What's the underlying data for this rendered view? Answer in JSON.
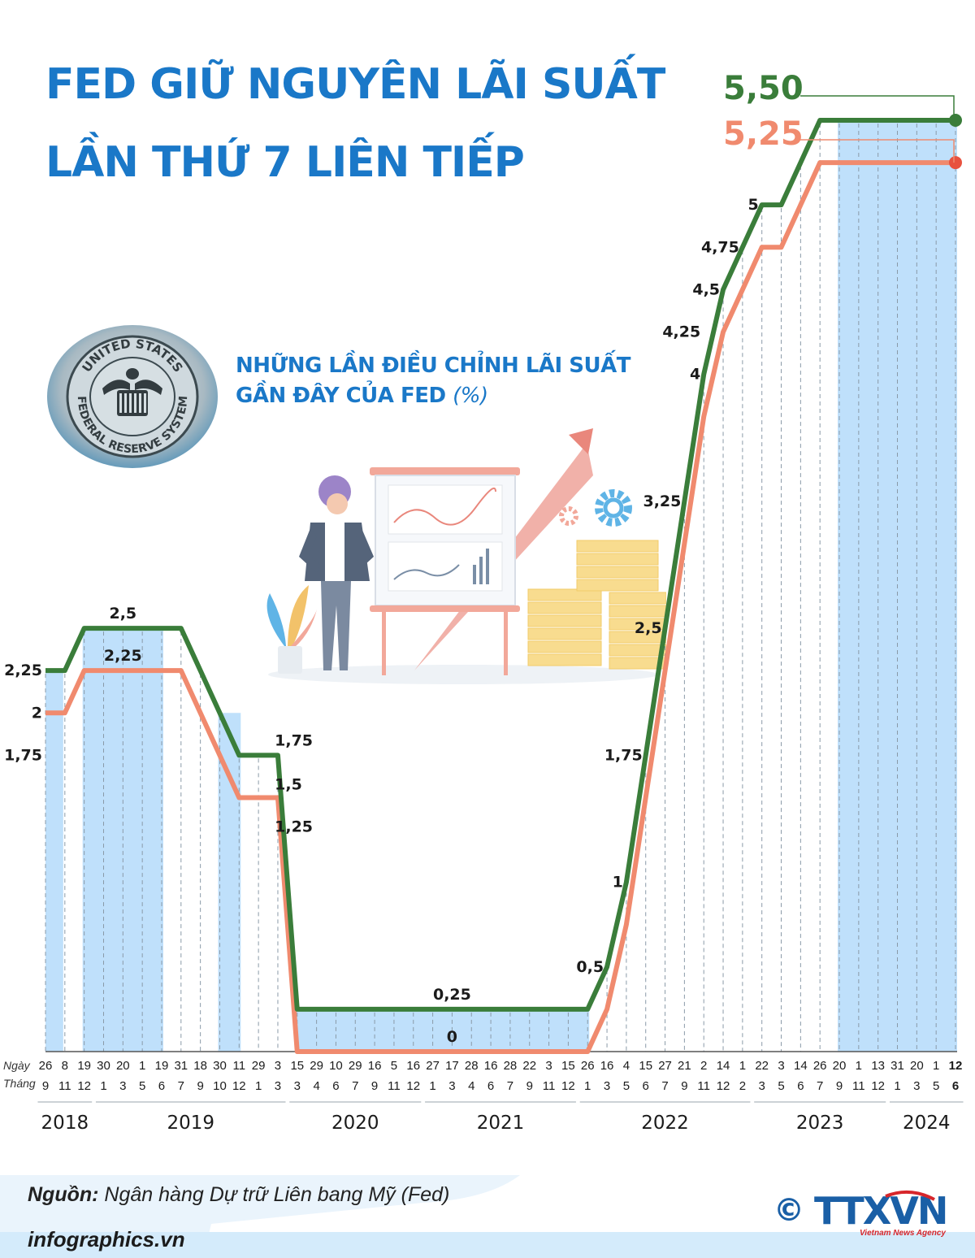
{
  "title_line1": "FED GIỮ NGUYÊN LÃI SUẤT",
  "title_line2": "LẦN THỨ 7 LIÊN TIẾP",
  "subtitle_line1": "NHỮNG LẦN ĐIỀU CHỈNH LÃI SUẤT",
  "subtitle_line2": "GẦN ĐÂY CỦA FED",
  "subtitle_unit": "(%)",
  "seal_text_top": "UNITED STATES",
  "seal_text_bottom": "FEDERAL RESERVE SYSTEM",
  "source_label": "Nguồn:",
  "source_text": "Ngân hàng Dự trữ Liên bang Mỹ (Fed)",
  "site": "infographics.vn",
  "copyright_symbol": "©",
  "logo_text": "TTXVN",
  "logo_sub": "Vietnam News Agency",
  "colors": {
    "upper": "#3a7d3a",
    "lower": "#f08a6e",
    "title": "#1a78c8",
    "band": "#bfe0fb"
  },
  "chart_data": {
    "type": "line",
    "x_axis_row_labels": [
      "Ngày",
      "Tháng"
    ],
    "dates": [
      [
        "26",
        "9"
      ],
      [
        "8",
        "11"
      ],
      [
        "19",
        "12"
      ],
      [
        "30",
        "1"
      ],
      [
        "20",
        "3"
      ],
      [
        "1",
        "5"
      ],
      [
        "19",
        "6"
      ],
      [
        "31",
        "7"
      ],
      [
        "18",
        "9"
      ],
      [
        "30",
        "10"
      ],
      [
        "11",
        "12"
      ],
      [
        "29",
        "1"
      ],
      [
        "3",
        "3"
      ],
      [
        "15",
        "3"
      ],
      [
        "29",
        "4"
      ],
      [
        "10",
        "6"
      ],
      [
        "29",
        "7"
      ],
      [
        "16",
        "9"
      ],
      [
        "5",
        "11"
      ],
      [
        "16",
        "12"
      ],
      [
        "27",
        "1"
      ],
      [
        "17",
        "3"
      ],
      [
        "28",
        "4"
      ],
      [
        "16",
        "6"
      ],
      [
        "28",
        "7"
      ],
      [
        "22",
        "9"
      ],
      [
        "3",
        "11"
      ],
      [
        "15",
        "12"
      ],
      [
        "26",
        "1"
      ],
      [
        "16",
        "3"
      ],
      [
        "4",
        "5"
      ],
      [
        "15",
        "6"
      ],
      [
        "27",
        "7"
      ],
      [
        "21",
        "9"
      ],
      [
        "2",
        "11"
      ],
      [
        "14",
        "12"
      ],
      [
        "1",
        "2"
      ],
      [
        "22",
        "3"
      ],
      [
        "3",
        "5"
      ],
      [
        "14",
        "6"
      ],
      [
        "26",
        "7"
      ],
      [
        "20",
        "9"
      ],
      [
        "1",
        "11"
      ],
      [
        "13",
        "12"
      ],
      [
        "31",
        "1"
      ],
      [
        "20",
        "3"
      ],
      [
        "1",
        "5"
      ],
      [
        "12",
        "6"
      ]
    ],
    "years": [
      {
        "label": "2018",
        "from": 0,
        "to": 2
      },
      {
        "label": "2019",
        "from": 3,
        "to": 12
      },
      {
        "label": "2020",
        "from": 13,
        "to": 19
      },
      {
        "label": "2021",
        "from": 20,
        "to": 27
      },
      {
        "label": "2022",
        "from": 28,
        "to": 36
      },
      {
        "label": "2023",
        "from": 37,
        "to": 43
      },
      {
        "label": "2024",
        "from": 44,
        "to": 47
      }
    ],
    "series": [
      {
        "role": "upper",
        "values": [
          2.25,
          2.25,
          2.5,
          2.5,
          2.5,
          2.5,
          2.5,
          2.5,
          2.25,
          2,
          1.75,
          1.75,
          1.75,
          0.25,
          0.25,
          0.25,
          0.25,
          0.25,
          0.25,
          0.25,
          0.25,
          0.25,
          0.25,
          0.25,
          0.25,
          0.25,
          0.25,
          0.25,
          0.25,
          0.5,
          1,
          1.75,
          2.5,
          3.25,
          4,
          4.5,
          4.75,
          5,
          5,
          5.25,
          5.5,
          5.5,
          5.5,
          5.5,
          5.5,
          5.5,
          5.5,
          5.5
        ]
      },
      {
        "role": "lower",
        "values": [
          2,
          2,
          2.25,
          2.25,
          2.25,
          2.25,
          2.25,
          2.25,
          2,
          1.75,
          1.5,
          1.5,
          1.5,
          0,
          0,
          0,
          0,
          0,
          0,
          0,
          0,
          0,
          0,
          0,
          0,
          0,
          0,
          0,
          0,
          0.25,
          0.75,
          1.5,
          2.25,
          3,
          3.75,
          4.25,
          4.5,
          4.75,
          4.75,
          5,
          5.25,
          5.25,
          5.25,
          5.25,
          5.25,
          5.25,
          5.25,
          5.25
        ]
      }
    ],
    "value_labels": [
      {
        "text": "2,25",
        "value": 2.25,
        "idx": 0
      },
      {
        "text": "2",
        "value": 2,
        "idx": 0
      },
      {
        "text": "1,75",
        "value": 1.75,
        "idx": 0
      },
      {
        "text": "2,5",
        "value": 2.5,
        "idx": 4
      },
      {
        "text": "2,25",
        "value": 2.25,
        "idx": 4
      },
      {
        "text": "1,75",
        "value": 1.75,
        "idx": 11
      },
      {
        "text": "1,5",
        "value": 1.5,
        "idx": 11
      },
      {
        "text": "1,25",
        "value": 1.25,
        "idx": 11
      },
      {
        "text": "0,25",
        "value": 0.25,
        "idx": 21
      },
      {
        "text": "0",
        "value": 0,
        "idx": 21
      },
      {
        "text": "0,5",
        "value": 0.5,
        "idx": 29
      },
      {
        "text": "1",
        "value": 1,
        "idx": 30
      },
      {
        "text": "1,75",
        "value": 1.75,
        "idx": 31
      },
      {
        "text": "2,5",
        "value": 2.5,
        "idx": 32
      },
      {
        "text": "3,25",
        "value": 3.25,
        "idx": 33
      },
      {
        "text": "4",
        "value": 4,
        "idx": 34
      },
      {
        "text": "4,25",
        "value": 4.25,
        "idx": 34
      },
      {
        "text": "4,5",
        "value": 4.5,
        "idx": 35
      },
      {
        "text": "4,75",
        "value": 4.75,
        "idx": 36
      },
      {
        "text": "5",
        "value": 5,
        "idx": 37
      },
      {
        "text": "5,50",
        "value": 5.5,
        "idx": 47
      },
      {
        "text": "5,25",
        "value": 5.25,
        "idx": 47
      }
    ],
    "bands": [
      [
        0,
        0
      ],
      [
        2,
        6
      ],
      [
        9,
        10
      ],
      [
        13,
        28
      ],
      [
        41,
        47
      ]
    ]
  }
}
